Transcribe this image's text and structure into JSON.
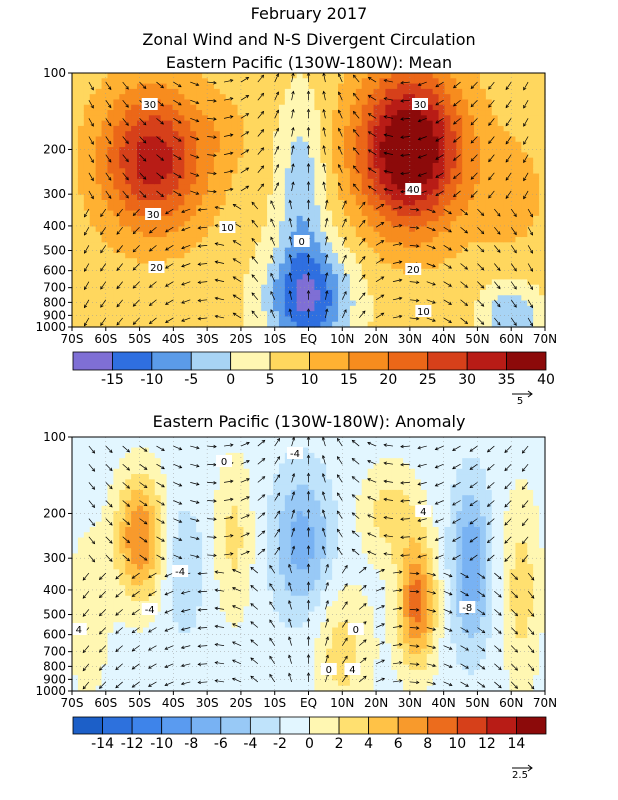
{
  "titles": {
    "line1": "February 2017",
    "line2": "Zonal Wind and N-S Divergent Circulation"
  },
  "chart_data": [
    {
      "type": "heatmap",
      "title": "Eastern Pacific (130W-180W): Mean",
      "x": {
        "ticks": [
          "70S",
          "60S",
          "50S",
          "40S",
          "30S",
          "20S",
          "10S",
          "EQ",
          "10N",
          "20N",
          "30N",
          "40N",
          "50N",
          "60N",
          "70N"
        ],
        "range": [
          -70,
          70
        ]
      },
      "y": {
        "ticks": [
          100,
          200,
          300,
          400,
          500,
          600,
          700,
          800,
          900,
          1000
        ],
        "range": [
          100,
          1000
        ],
        "scale": "log",
        "reversed": true
      },
      "colorbar": {
        "labels": [
          "-15",
          "-10",
          "-5",
          "0",
          "5",
          "10",
          "15",
          "20",
          "25",
          "30",
          "35",
          "40"
        ],
        "levels": [
          -20,
          -15,
          -10,
          -5,
          0,
          5,
          10,
          15,
          20,
          25,
          30,
          35,
          40,
          45
        ],
        "colors": [
          "#7f6fd5",
          "#2f6fe0",
          "#5b9be8",
          "#a8d4f5",
          "#fff7b2",
          "#ffd75e",
          "#ffb132",
          "#f78c1e",
          "#eb6718",
          "#d6401a",
          "#b81c16",
          "#8c0a0a"
        ]
      },
      "vector_ref": "5",
      "contour_labels": [
        "30",
        "30",
        "30",
        "20",
        "10",
        "0",
        "40",
        "20",
        "10"
      ],
      "features": [
        {
          "lat": -46,
          "p": 220,
          "value": 33,
          "sx": 11,
          "sy": 0.45
        },
        {
          "lat": 30,
          "p": 200,
          "value": 44,
          "sx": 11,
          "sy": 0.5
        },
        {
          "lat": 0,
          "p": 780,
          "value": -14,
          "sx": 9,
          "sy": 0.35
        },
        {
          "lat": -2,
          "p": 300,
          "value": -4,
          "sx": 5,
          "sy": 0.6
        },
        {
          "lat": -25,
          "p": 170,
          "value": 10,
          "sx": 6,
          "sy": 0.25
        },
        {
          "lat": 60,
          "p": 300,
          "value": 12,
          "sx": 8,
          "sy": 0.4
        },
        {
          "lat": 60,
          "p": 900,
          "value": -5,
          "sx": 6,
          "sy": 0.2
        }
      ],
      "background_value": 7
    },
    {
      "type": "heatmap",
      "title": "Eastern Pacific (130W-180W): Anomaly",
      "x": {
        "ticks": [
          "70S",
          "60S",
          "50S",
          "40S",
          "30S",
          "20S",
          "10S",
          "EQ",
          "10N",
          "20N",
          "30N",
          "40N",
          "50N",
          "60N",
          "70N"
        ],
        "range": [
          -70,
          70
        ]
      },
      "y": {
        "ticks": [
          100,
          200,
          300,
          400,
          500,
          600,
          700,
          800,
          900,
          1000
        ],
        "range": [
          100,
          1000
        ],
        "scale": "log",
        "reversed": true
      },
      "colorbar": {
        "labels": [
          "-14",
          "-12",
          "-10",
          "-8",
          "-6",
          "-4",
          "-2",
          "0",
          "2",
          "4",
          "6",
          "8",
          "10",
          "12",
          "14"
        ],
        "levels": [
          -16,
          -14,
          -12,
          -10,
          -8,
          -6,
          -4,
          -2,
          0,
          2,
          4,
          6,
          8,
          10,
          12,
          14,
          16
        ],
        "colors": [
          "#1c5fc8",
          "#2d71dd",
          "#3e84ea",
          "#5a9bf0",
          "#78b2f3",
          "#98c9f6",
          "#bfe3fb",
          "#e2f6ff",
          "#fff7b2",
          "#ffe070",
          "#ffc247",
          "#f89a2c",
          "#ec6c1d",
          "#d6401a",
          "#b81c16",
          "#8c0a0a"
        ]
      },
      "vector_ref": "2.5",
      "contour_labels": [
        "0",
        "-4",
        "-4",
        "4",
        "-4",
        "4",
        "0",
        "4",
        "-8",
        "0"
      ],
      "features": [
        {
          "lat": -50,
          "p": 250,
          "value": 8,
          "sx": 5,
          "sy": 0.4
        },
        {
          "lat": -37,
          "p": 330,
          "value": -4,
          "sx": 4,
          "sy": 0.4
        },
        {
          "lat": -22,
          "p": 250,
          "value": 2.5,
          "sx": 4,
          "sy": 0.5
        },
        {
          "lat": -2,
          "p": 260,
          "value": -7,
          "sx": 6,
          "sy": 0.45
        },
        {
          "lat": 10,
          "p": 700,
          "value": 3,
          "sx": 6,
          "sy": 0.4
        },
        {
          "lat": 32,
          "p": 450,
          "value": 9,
          "sx": 4,
          "sy": 0.4
        },
        {
          "lat": 24,
          "p": 200,
          "value": 3,
          "sx": 6,
          "sy": 0.3
        },
        {
          "lat": 48,
          "p": 320,
          "value": -8,
          "sx": 4,
          "sy": 0.5
        },
        {
          "lat": 63,
          "p": 400,
          "value": 3,
          "sx": 4,
          "sy": 0.6
        },
        {
          "lat": -65,
          "p": 500,
          "value": 2,
          "sx": 4,
          "sy": 0.5
        }
      ],
      "background_value": -1
    }
  ]
}
